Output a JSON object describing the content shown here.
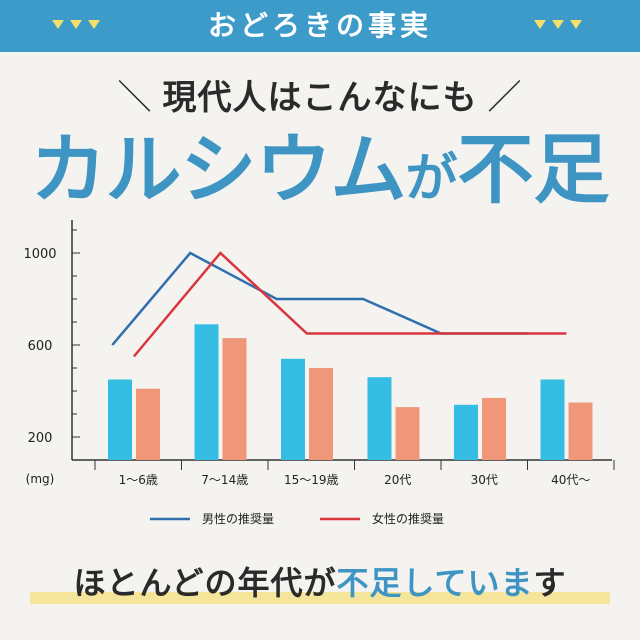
{
  "header": {
    "banner_title": "おどろきの事実",
    "subhead": "現代人はこんなにも",
    "headline_part1": "カルシウム",
    "headline_part2": "が",
    "headline_part3": "不足"
  },
  "footer": {
    "text_prefix": "ほとんどの年代が",
    "text_highlight": "不足していま",
    "text_suffix": "す"
  },
  "colors": {
    "banner": "#3d9bc9",
    "accent_blue": "#3e95c3",
    "bar_male": "#36bde3",
    "bar_female": "#f0977a",
    "line_male": "#2f6fae",
    "line_female": "#d9363d",
    "triangle": "#f3df6a"
  },
  "chart_data": {
    "type": "bar",
    "categories": [
      "1〜6歳",
      "7〜14歳",
      "15〜19歳",
      "20代",
      "30代",
      "40代〜"
    ],
    "y_ticks": [
      "1000",
      "600",
      "200"
    ],
    "y_unit": "(mg)",
    "ylim": [
      100,
      1200
    ],
    "series": [
      {
        "name": "男性",
        "kind": "bar",
        "values": [
          450,
          690,
          540,
          460,
          340,
          450
        ]
      },
      {
        "name": "女性",
        "kind": "bar",
        "values": [
          410,
          630,
          500,
          330,
          370,
          350
        ]
      },
      {
        "name": "男性の推奨量",
        "kind": "line",
        "points": [
          [
            0.2,
            600
          ],
          [
            1.1,
            1000
          ],
          [
            2.1,
            800
          ],
          [
            3.1,
            800
          ],
          [
            4.0,
            650
          ],
          [
            5.0,
            650
          ]
        ]
      },
      {
        "name": "女性の推奨量",
        "kind": "line",
        "points": [
          [
            0.45,
            550
          ],
          [
            1.45,
            1000
          ],
          [
            2.45,
            650
          ],
          [
            3.45,
            650
          ],
          [
            4.45,
            650
          ],
          [
            5.45,
            650
          ]
        ]
      }
    ],
    "legend": [
      "男性の推奨量",
      "女性の推奨量"
    ],
    "grid": false
  }
}
